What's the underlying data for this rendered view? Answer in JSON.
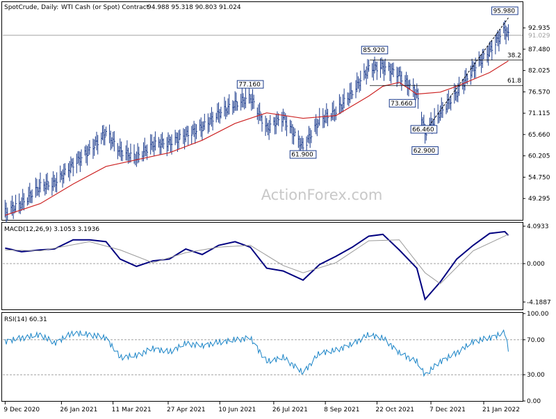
{
  "chart_data": [
    {
      "type": "line",
      "panel": "price",
      "header": {
        "symbol": "SpotCrude, Daily:",
        "instrument": "WTI Cash (or Spot) Contract",
        "ohlc": "94.988 95.318 90.803 91.024"
      },
      "y_ticks": [
        "92.935",
        "87.480",
        "82.025",
        "76.570",
        "71.115",
        "65.660",
        "60.205",
        "54.750",
        "49.295"
      ],
      "last_price_label": "91.029",
      "last_price": 91.029,
      "ylim": [
        44.0,
        99.0
      ],
      "watermark": "ActionForex.com",
      "price_callouts": [
        {
          "text": "95.980",
          "x": "2022-02-08",
          "y": 95.98
        },
        {
          "text": "85.920",
          "x": "2021-10-20",
          "y": 85.92
        },
        {
          "text": "77.160",
          "x": "2021-07-06",
          "y": 77.16
        },
        {
          "text": "73.660",
          "x": "2021-11-25",
          "y": 73.66
        },
        {
          "text": "66.460",
          "x": "2021-12-01",
          "y": 66.46
        },
        {
          "text": "62.900",
          "x": "2021-12-02",
          "y": 62.9
        },
        {
          "text": "61.900",
          "x": "2021-08-20",
          "y": 61.9
        }
      ],
      "fib_levels": [
        {
          "label": "38.2",
          "y": 84.7
        },
        {
          "label": "61.8",
          "y": 78.2
        }
      ],
      "series": [
        {
          "name": "price",
          "color": "#1a3a8c",
          "x": [
            "2020-12-09",
            "2020-12-23",
            "2021-01-08",
            "2021-01-20",
            "2021-02-05",
            "2021-02-19",
            "2021-03-05",
            "2021-03-17",
            "2021-03-31",
            "2021-04-14",
            "2021-04-28",
            "2021-05-12",
            "2021-05-26",
            "2021-06-09",
            "2021-06-23",
            "2021-07-06",
            "2021-07-20",
            "2021-08-03",
            "2021-08-20",
            "2021-09-03",
            "2021-09-17",
            "2021-10-01",
            "2021-10-15",
            "2021-10-27",
            "2021-11-10",
            "2021-11-25",
            "2021-12-02",
            "2021-12-15",
            "2021-12-29",
            "2022-01-12",
            "2022-01-26",
            "2022-02-08",
            "2022-02-11"
          ],
          "values": [
            45.8,
            48.0,
            52.5,
            53.2,
            58.0,
            61.6,
            66.2,
            61.4,
            59.8,
            63.2,
            63.5,
            65.5,
            67.5,
            71.0,
            73.5,
            75.2,
            67.2,
            70.0,
            62.3,
            69.3,
            71.5,
            76.5,
            82.5,
            83.0,
            80.9,
            76.0,
            66.0,
            71.3,
            76.2,
            82.5,
            87.0,
            92.5,
            91.0
          ]
        },
        {
          "name": "ma",
          "color": "#cc2222",
          "x": [
            "2020-12-09",
            "2021-01-08",
            "2021-02-05",
            "2021-03-05",
            "2021-03-31",
            "2021-04-28",
            "2021-05-26",
            "2021-06-23",
            "2021-07-20",
            "2021-08-20",
            "2021-09-17",
            "2021-10-15",
            "2021-10-27",
            "2021-11-10",
            "2021-11-25",
            "2021-12-15",
            "2021-12-29",
            "2022-01-26",
            "2022-02-11"
          ],
          "values": [
            45.0,
            48.0,
            53.0,
            57.5,
            59.2,
            61.0,
            64.2,
            68.5,
            71.2,
            69.8,
            70.5,
            75.5,
            78.0,
            79.0,
            76.0,
            76.5,
            78.0,
            81.5,
            84.5
          ]
        },
        {
          "name": "trendline",
          "color": "#000000",
          "dash": true,
          "x": [
            "2021-12-02",
            "2022-02-11"
          ],
          "values": [
            66.5,
            95.5
          ]
        }
      ]
    },
    {
      "type": "line",
      "panel": "macd",
      "label": "MACD(12,26,9) 3.1053 3.1936",
      "y_ticks": [
        "4.0933",
        "0.000",
        "-4.1887"
      ],
      "ylim": [
        -5.0,
        4.4
      ],
      "series": [
        {
          "name": "macd",
          "color": "#000080",
          "x": [
            "2020-12-09",
            "2020-12-23",
            "2021-01-08",
            "2021-01-20",
            "2021-02-05",
            "2021-02-19",
            "2021-03-05",
            "2021-03-17",
            "2021-03-31",
            "2021-04-14",
            "2021-04-28",
            "2021-05-12",
            "2021-05-26",
            "2021-06-09",
            "2021-06-23",
            "2021-07-06",
            "2021-07-20",
            "2021-08-03",
            "2021-08-20",
            "2021-09-03",
            "2021-09-17",
            "2021-10-01",
            "2021-10-15",
            "2021-10-27",
            "2021-11-10",
            "2021-11-25",
            "2021-12-02",
            "2021-12-15",
            "2021-12-29",
            "2022-01-12",
            "2022-01-26",
            "2022-02-08",
            "2022-02-11"
          ],
          "values": [
            1.7,
            1.3,
            1.5,
            1.6,
            2.6,
            2.6,
            2.4,
            0.5,
            -0.3,
            0.3,
            0.5,
            1.6,
            1.0,
            2.0,
            2.4,
            1.8,
            -0.5,
            -0.8,
            -1.8,
            -0.1,
            0.8,
            1.8,
            3.0,
            3.2,
            1.5,
            -0.5,
            -3.9,
            -2.0,
            0.5,
            2.0,
            3.3,
            3.5,
            3.1
          ]
        },
        {
          "name": "signal",
          "color": "#999999",
          "x": [
            "2020-12-09",
            "2021-01-08",
            "2021-02-19",
            "2021-03-17",
            "2021-04-14",
            "2021-05-12",
            "2021-06-09",
            "2021-07-06",
            "2021-08-03",
            "2021-08-20",
            "2021-09-17",
            "2021-10-15",
            "2021-11-10",
            "2021-12-02",
            "2021-12-15",
            "2022-01-12",
            "2022-02-11"
          ],
          "values": [
            1.5,
            1.4,
            2.4,
            1.5,
            0.1,
            1.2,
            1.8,
            2.0,
            -0.2,
            -1.0,
            0.1,
            2.5,
            2.6,
            -1.0,
            -2.2,
            1.4,
            3.2
          ]
        }
      ]
    },
    {
      "type": "line",
      "panel": "rsi",
      "label": "RSI(14) 60.31",
      "y_ticks": [
        "100.00",
        "70.00",
        "30.00",
        "0.00"
      ],
      "ylim": [
        0,
        100
      ],
      "series": [
        {
          "name": "rsi",
          "color": "#1a84c7",
          "x": [
            "2020-12-09",
            "2020-12-23",
            "2021-01-08",
            "2021-01-20",
            "2021-02-05",
            "2021-02-19",
            "2021-03-05",
            "2021-03-17",
            "2021-03-31",
            "2021-04-14",
            "2021-04-28",
            "2021-05-12",
            "2021-05-26",
            "2021-06-09",
            "2021-06-23",
            "2021-07-06",
            "2021-07-20",
            "2021-08-03",
            "2021-08-20",
            "2021-09-03",
            "2021-09-17",
            "2021-10-01",
            "2021-10-15",
            "2021-10-27",
            "2021-11-10",
            "2021-11-25",
            "2021-12-02",
            "2021-12-15",
            "2021-12-29",
            "2022-01-12",
            "2022-01-26",
            "2022-02-08",
            "2022-02-11"
          ],
          "values": [
            68,
            72,
            76,
            66,
            78,
            76,
            72,
            50,
            52,
            60,
            56,
            66,
            63,
            67,
            70,
            72,
            45,
            50,
            32,
            55,
            58,
            65,
            76,
            72,
            55,
            45,
            30,
            45,
            55,
            68,
            72,
            78,
            60
          ]
        }
      ]
    }
  ],
  "x_axis": {
    "tick_labels": [
      "9 Dec 2020",
      "26 Jan 2021",
      "11 Mar 2021",
      "27 Apr 2021",
      "10 Jun 2021",
      "26 Jul 2021",
      "8 Sep 2021",
      "22 Oct 2021",
      "7 Dec 2021",
      "21 Jan 2022"
    ],
    "tick_dates": [
      "2020-12-09",
      "2021-01-26",
      "2021-03-11",
      "2021-04-27",
      "2021-06-10",
      "2021-07-26",
      "2021-09-08",
      "2021-10-22",
      "2021-12-07",
      "2022-01-21"
    ],
    "range": [
      "2020-12-07",
      "2022-02-22"
    ]
  }
}
